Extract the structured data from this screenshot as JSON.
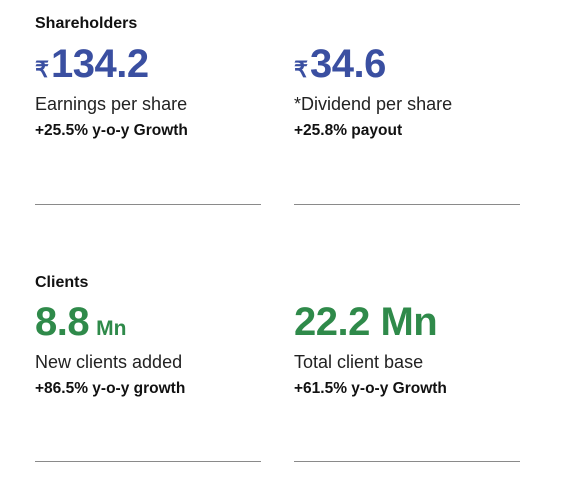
{
  "shareholders": {
    "heading": "Shareholders",
    "metrics": [
      {
        "currency": "₹",
        "value": "134.2",
        "label": "Earnings per share",
        "growth": "+25.5% y-o-y Growth"
      },
      {
        "currency": "₹",
        "value": "34.6",
        "label": "*Dividend per share",
        "growth": "+25.8% payout"
      }
    ]
  },
  "clients": {
    "heading": "Clients",
    "metrics": [
      {
        "value": "8.8",
        "unit": "Mn",
        "label": "New clients added",
        "growth": "+86.5% y-o-y growth"
      },
      {
        "value": "22.2 Mn",
        "label": "Total client base",
        "growth": "+61.5% y-o-y Growth"
      }
    ]
  },
  "colors": {
    "shareholders_accent": "#3a4fa1",
    "clients_accent": "#2f8a4a"
  }
}
